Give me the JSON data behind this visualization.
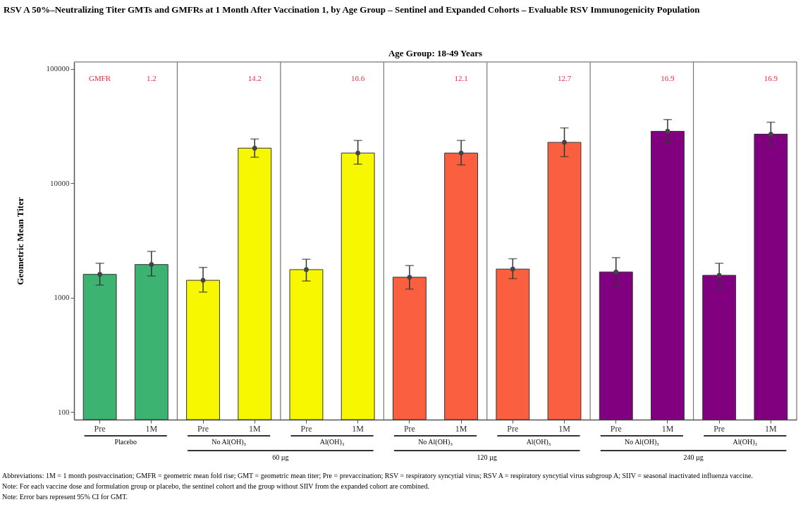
{
  "chart_data": {
    "type": "bar",
    "title": "RSV A 50%–Neutralizing Titer GMTs and GMFRs at 1 Month After Vaccination 1, by Age Group – Sentinel and Expanded Cohorts – Evaluable RSV Immunogenicity Population",
    "subtitle": "Age Group: 18-49 Years",
    "ylabel": "Geometric Mean Titer",
    "categories": [
      "Pre",
      "1M",
      "Pre",
      "1M",
      "Pre",
      "1M",
      "Pre",
      "1M",
      "Pre",
      "1M",
      "Pre",
      "1M",
      "Pre",
      "1M"
    ],
    "values": [
      1600,
      1950,
      1420,
      20300,
      1760,
      18400,
      1510,
      18400,
      1780,
      22800,
      1680,
      28500,
      1570,
      26900
    ],
    "errors": [
      [
        1290,
        2000
      ],
      [
        1550,
        2540
      ],
      [
        1120,
        1840
      ],
      [
        16900,
        24400
      ],
      [
        1400,
        2170
      ],
      [
        14700,
        23700
      ],
      [
        1190,
        1910
      ],
      [
        14500,
        23700
      ],
      [
        1470,
        2190
      ],
      [
        17100,
        30500
      ],
      [
        1270,
        2240
      ],
      [
        22700,
        36100
      ],
      [
        1220,
        2000
      ],
      [
        21400,
        34200
      ]
    ],
    "colors": [
      "#3cb371",
      "#3cb371",
      "#f7f700",
      "#f7f700",
      "#f7f700",
      "#f7f700",
      "#fa6040",
      "#fa6040",
      "#fa6040",
      "#fa6040",
      "#800080",
      "#800080",
      "#800080",
      "#800080"
    ],
    "log": "y",
    "ylim": [
      86,
      115000
    ],
    "yticks": [
      100,
      1000,
      10000,
      100000
    ],
    "grid": false,
    "series": [
      {
        "type": "scatter",
        "color": "#444444",
        "marker": "circle",
        "values": [
          1600,
          1950,
          1420,
          20300,
          1760,
          18400,
          1510,
          18400,
          1780,
          22800,
          1680,
          28500,
          1570,
          26900
        ]
      }
    ],
    "annotations": [
      "GMFR",
      "1.2",
      "14.2",
      "10.6",
      "12.1",
      "12.7",
      "16.9",
      "16.9",
      "Placebo",
      "No Al(OH)₃",
      "Al(OH)₃",
      "No Al(OH)₃",
      "Al(OH)₃",
      "No Al(OH)₃",
      "Al(OH)₃",
      "60 µg",
      "120 µg",
      "240 µg",
      "Abbreviations: 1M = 1 month postvaccination; GMFR = geometric mean fold rise; GMT = geometric mean titer; Pre = prevaccination; RSV = respiratory syncytial virus; RSV A = respiratory syncytial virus subgroup A; SIIV = seasonal inactivated influenza vaccine.",
      "Note: For each vaccine dose and formulation group or placebo, the sentinel cohort and the group without SIIV from the expanded cohort are combined.",
      "Note: Error bars represent 95% CI for GMT."
    ]
  }
}
